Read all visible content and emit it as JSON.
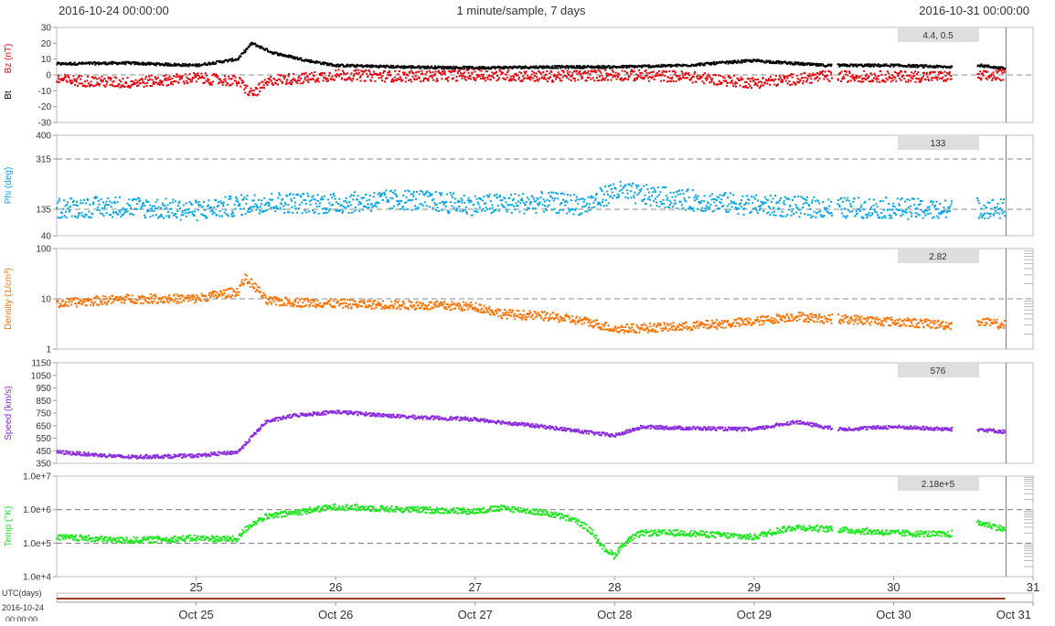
{
  "header": {
    "start": "2016-10-24 00:00:00",
    "title": "1 minute/sample, 7 days",
    "end": "2016-10-31 00:00:00"
  },
  "colors": {
    "bz": "#e8000b",
    "bt": "#000000",
    "phi": "#00a6ea",
    "density": "#ff7100",
    "speed": "#8b2be2",
    "temp": "#1ae81a",
    "scrollbar": "#9b3a1e"
  },
  "chart_data": [
    {
      "type": "scatter",
      "id": "mag",
      "ylabel": "Bz (nT)",
      "ylabel2": "Bt",
      "ylim": [
        -30,
        30
      ],
      "yticks": [
        -30,
        -20,
        -10,
        0,
        10,
        20,
        30
      ],
      "tick_labels": [
        "-30",
        "-20",
        "-10",
        "0",
        "10",
        "20",
        "30"
      ],
      "dashed": [
        0
      ],
      "readout": "4.4, 0.5",
      "series": [
        {
          "key": "bt",
          "x": [
            24,
            24.5,
            25,
            25.3,
            25.4,
            25.55,
            25.8,
            26,
            26.5,
            27,
            27.5,
            28,
            28.5,
            29,
            29.5,
            29.6,
            30,
            30.4,
            30.62,
            30.8
          ],
          "y": [
            7,
            7.5,
            6,
            10,
            20,
            14,
            9,
            6,
            5,
            4.5,
            5,
            5,
            6,
            9,
            6,
            6,
            6,
            5,
            6,
            4
          ]
        },
        {
          "key": "bz",
          "x": [
            24,
            24.5,
            25,
            25.3,
            25.4,
            25.55,
            25.8,
            26,
            26.5,
            27,
            27.5,
            28,
            28.5,
            29,
            29.5,
            29.6,
            30,
            30.4,
            30.62,
            30.8
          ],
          "y": [
            -3,
            -5,
            -2,
            -4,
            -12,
            -3,
            -2,
            0,
            -1,
            0,
            -1,
            0,
            -1,
            -5,
            -1,
            -1,
            -1,
            -1,
            -1,
            0
          ]
        }
      ]
    },
    {
      "type": "scatter",
      "id": "phi",
      "ylabel": "Phi (deg)",
      "ylim": [
        40,
        400
      ],
      "yticks": [
        40,
        135,
        315,
        400
      ],
      "tick_labels": [
        "40",
        "135",
        "315",
        "400"
      ],
      "dashed": [
        135,
        315
      ],
      "readout": "133",
      "series": [
        {
          "key": "phi",
          "x": [
            24,
            24.5,
            25,
            25.5,
            26,
            26.5,
            27,
            27.5,
            27.8,
            28,
            28.3,
            28.6,
            29,
            29.5,
            30,
            30.4,
            30.62,
            30.8
          ],
          "y": [
            140,
            145,
            130,
            160,
            155,
            170,
            150,
            160,
            150,
            200,
            180,
            165,
            150,
            140,
            140,
            130,
            140,
            135
          ]
        }
      ]
    },
    {
      "type": "scatter",
      "id": "density",
      "ylabel": "Density (1/cm³)",
      "scale": "log",
      "ylim": [
        1,
        100
      ],
      "yticks": [
        1,
        10,
        100
      ],
      "tick_labels": [
        "1",
        "10",
        "100"
      ],
      "dashed": [
        10
      ],
      "readout": "2.82",
      "series": [
        {
          "key": "density",
          "x": [
            24,
            24.5,
            25,
            25.3,
            25.35,
            25.5,
            26,
            26.5,
            27,
            27.2,
            27.5,
            27.8,
            28,
            28.5,
            29,
            29.3,
            29.5,
            29.6,
            30,
            30.4,
            30.62,
            30.8
          ],
          "y": [
            8,
            10,
            10,
            14,
            25,
            9,
            8,
            7.5,
            7,
            5,
            4.5,
            3.5,
            2.5,
            2.8,
            3.5,
            4.5,
            4,
            4,
            3.5,
            3,
            3.5,
            3
          ]
        }
      ]
    },
    {
      "type": "scatter",
      "id": "speed",
      "ylabel": "Speed (km/s)",
      "ylim": [
        350,
        1150
      ],
      "yticks": [
        350,
        450,
        550,
        650,
        750,
        850,
        950,
        1050,
        1150
      ],
      "tick_labels": [
        "350",
        "450",
        "550",
        "650",
        "750",
        "850",
        "950",
        "1050",
        "1150"
      ],
      "dashed": [],
      "readout": "576",
      "series": [
        {
          "key": "speed",
          "x": [
            24,
            24.5,
            25,
            25.3,
            25.5,
            25.7,
            26,
            26.5,
            27,
            27.5,
            28,
            28.2,
            28.5,
            29,
            29.3,
            29.6,
            30,
            30.4,
            30.62,
            30.8
          ],
          "y": [
            440,
            400,
            410,
            440,
            680,
            730,
            760,
            720,
            700,
            640,
            570,
            640,
            630,
            620,
            680,
            620,
            640,
            620,
            620,
            600
          ]
        }
      ]
    },
    {
      "type": "scatter",
      "id": "temp",
      "ylabel": "Temp (°K)",
      "scale": "log",
      "ylim": [
        10000,
        10000000
      ],
      "yticks": [
        10000,
        100000,
        1000000,
        10000000
      ],
      "tick_labels": [
        "1.0e+4",
        "1.0e+5",
        "1.0e+6",
        "1.0e+7"
      ],
      "dashed": [
        100000,
        1000000
      ],
      "readout": "2.18e+5",
      "series": [
        {
          "key": "temp",
          "x": [
            24,
            24.5,
            25,
            25.3,
            25.5,
            25.7,
            26,
            26.5,
            27,
            27.2,
            27.5,
            27.7,
            27.9,
            28,
            28.2,
            28.5,
            29,
            29.3,
            29.6,
            30,
            30.4,
            30.62,
            30.8
          ],
          "y": [
            150000,
            120000,
            140000,
            130000,
            600000,
            800000,
            1200000,
            1000000,
            900000,
            1100000,
            800000,
            500000,
            80000,
            40000,
            200000,
            200000,
            150000,
            300000,
            250000,
            200000,
            180000,
            400000,
            250000
          ]
        }
      ]
    }
  ],
  "xaxis": {
    "label": "UTC(days)",
    "start_label": "2016-10-24",
    "start_time": "00:00:00",
    "ticks": [
      25,
      26,
      27,
      28,
      29,
      30,
      31
    ],
    "tick_labels": [
      "25",
      "26",
      "27",
      "28",
      "29",
      "30",
      "31"
    ],
    "range": [
      24,
      31
    ],
    "data_end": 30.8
  },
  "navigator": {
    "labels": [
      "Oct 25",
      "Oct 26",
      "Oct 27",
      "Oct 28",
      "Oct 29",
      "Oct 30",
      "Oct 31"
    ]
  }
}
